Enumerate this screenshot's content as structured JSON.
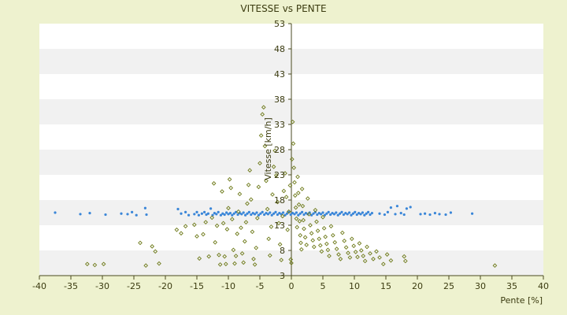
{
  "chart_data": {
    "type": "scatter",
    "title": "VITESSE vs PENTE",
    "xlabel": "Pente [%]",
    "ylabel": "Vitesse [km/h]",
    "xlim": [
      -40,
      40
    ],
    "ylim": [
      3,
      53
    ],
    "xticks": [
      -40,
      -35,
      -30,
      -25,
      -20,
      -15,
      -10,
      -5,
      0,
      5,
      10,
      15,
      20,
      25,
      30,
      35,
      40
    ],
    "yticks": [
      3,
      8,
      13,
      18,
      23,
      28,
      33,
      38,
      43,
      48,
      53
    ],
    "grid": "alternating horizontal bands",
    "legend": "none",
    "series": [
      {
        "color": "#3a86d8",
        "marker": "dot",
        "points": [
          [
            -37.5,
            15.5
          ],
          [
            -33.5,
            15.2
          ],
          [
            -32,
            15.4
          ],
          [
            -29.5,
            15.1
          ],
          [
            -27,
            15.3
          ],
          [
            -26,
            15.2
          ],
          [
            -25.3,
            15.6
          ],
          [
            -24.6,
            15.0
          ],
          [
            -23.2,
            16.4
          ],
          [
            -23,
            15.1
          ],
          [
            -18,
            16.2
          ],
          [
            -17.5,
            15.3
          ],
          [
            -16.8,
            15.6
          ],
          [
            -16.3,
            15.0
          ],
          [
            -15.4,
            15.2
          ],
          [
            -15,
            15.6
          ],
          [
            -14.7,
            15.0
          ],
          [
            -14.2,
            15.3
          ],
          [
            -13.8,
            15.6
          ],
          [
            -13.5,
            15.1
          ],
          [
            -13.2,
            15.3
          ],
          [
            -12.8,
            16.3
          ],
          [
            -12.5,
            15.0
          ],
          [
            -12.2,
            15.4
          ],
          [
            -11.9,
            15.2
          ],
          [
            -11.6,
            15.6
          ],
          [
            -11.2,
            15.0
          ],
          [
            -10.9,
            15.3
          ],
          [
            -10.6,
            15.1
          ],
          [
            -10.3,
            15.5
          ],
          [
            -10.0,
            15.2
          ],
          [
            -9.7,
            15.4
          ],
          [
            -9.4,
            15.0
          ],
          [
            -9.1,
            15.3
          ],
          [
            -8.8,
            15.6
          ],
          [
            -8.5,
            15.1
          ],
          [
            -8.2,
            15.4
          ],
          [
            -7.9,
            15.2
          ],
          [
            -7.6,
            15.5
          ],
          [
            -7.3,
            15.0
          ],
          [
            -7.0,
            15.3
          ],
          [
            -6.7,
            15.6
          ],
          [
            -6.4,
            15.1
          ],
          [
            -6.1,
            15.4
          ],
          [
            -5.8,
            15.2
          ],
          [
            -5.5,
            15.5
          ],
          [
            -5.2,
            15.0
          ],
          [
            -4.9,
            15.3
          ],
          [
            -4.6,
            15.6
          ],
          [
            -4.3,
            15.1
          ],
          [
            -4.0,
            15.4
          ],
          [
            -3.7,
            15.2
          ],
          [
            -3.4,
            15.5
          ],
          [
            -3.1,
            15.0
          ],
          [
            -2.8,
            15.3
          ],
          [
            -2.5,
            15.6
          ],
          [
            -2.2,
            15.1
          ],
          [
            -1.9,
            15.4
          ],
          [
            -1.6,
            15.2
          ],
          [
            -1.3,
            15.5
          ],
          [
            -1.0,
            15.0
          ],
          [
            -0.7,
            15.3
          ],
          [
            -0.4,
            15.6
          ],
          [
            -0.1,
            15.1
          ],
          [
            0.2,
            15.4
          ],
          [
            0.5,
            15.2
          ],
          [
            0.8,
            15.5
          ],
          [
            1.1,
            15.0
          ],
          [
            1.4,
            15.3
          ],
          [
            1.7,
            15.6
          ],
          [
            2.0,
            15.1
          ],
          [
            2.3,
            15.4
          ],
          [
            2.6,
            15.2
          ],
          [
            2.9,
            15.5
          ],
          [
            3.2,
            15.0
          ],
          [
            3.5,
            15.3
          ],
          [
            3.8,
            15.6
          ],
          [
            4.1,
            15.1
          ],
          [
            4.4,
            15.4
          ],
          [
            4.7,
            15.2
          ],
          [
            5.0,
            15.5
          ],
          [
            5.3,
            15.0
          ],
          [
            5.6,
            15.3
          ],
          [
            5.9,
            15.6
          ],
          [
            6.2,
            15.1
          ],
          [
            6.5,
            15.4
          ],
          [
            6.8,
            15.2
          ],
          [
            7.1,
            15.5
          ],
          [
            7.4,
            15.0
          ],
          [
            7.7,
            15.3
          ],
          [
            8.0,
            15.6
          ],
          [
            8.3,
            15.1
          ],
          [
            8.6,
            15.4
          ],
          [
            8.9,
            15.2
          ],
          [
            9.2,
            15.5
          ],
          [
            9.5,
            15.0
          ],
          [
            9.8,
            15.3
          ],
          [
            10.1,
            15.6
          ],
          [
            10.4,
            15.1
          ],
          [
            10.7,
            15.4
          ],
          [
            11.0,
            15.2
          ],
          [
            11.3,
            15.5
          ],
          [
            11.6,
            15.0
          ],
          [
            11.9,
            15.3
          ],
          [
            12.2,
            15.6
          ],
          [
            12.5,
            15.1
          ],
          [
            12.8,
            15.4
          ],
          [
            14.0,
            15.3
          ],
          [
            14.8,
            15.1
          ],
          [
            15.3,
            15.6
          ],
          [
            15.8,
            16.5
          ],
          [
            16.5,
            15.2
          ],
          [
            16.8,
            16.8
          ],
          [
            17.4,
            15.4
          ],
          [
            17.9,
            15.1
          ],
          [
            18.3,
            16.3
          ],
          [
            18.9,
            16.6
          ],
          [
            20.5,
            15.2
          ],
          [
            21.2,
            15.3
          ],
          [
            22.0,
            15.1
          ],
          [
            22.8,
            15.4
          ],
          [
            23.5,
            15.2
          ],
          [
            24.5,
            15.1
          ],
          [
            25.3,
            15.5
          ],
          [
            28.7,
            15.3
          ]
        ]
      },
      {
        "color": "#6e7a1a",
        "marker": "diamond",
        "points": [
          [
            -32.4,
            5.3
          ],
          [
            -31.2,
            5.1
          ],
          [
            -29.8,
            5.3
          ],
          [
            -23.1,
            5.0
          ],
          [
            -24.0,
            9.5
          ],
          [
            -22.1,
            8.8
          ],
          [
            -21.6,
            7.8
          ],
          [
            -21.0,
            5.4
          ],
          [
            -18.2,
            12.1
          ],
          [
            -17.5,
            11.4
          ],
          [
            -16.8,
            12.8
          ],
          [
            -15.4,
            13.1
          ],
          [
            -15.0,
            10.8
          ],
          [
            -14.6,
            6.4
          ],
          [
            -14.0,
            11.2
          ],
          [
            -13.6,
            13.6
          ],
          [
            -13.1,
            6.8
          ],
          [
            -12.6,
            14.5
          ],
          [
            -12.3,
            21.3
          ],
          [
            -12.1,
            9.6
          ],
          [
            -11.8,
            12.9
          ],
          [
            -11.5,
            7.1
          ],
          [
            -11.3,
            5.2
          ],
          [
            -11.0,
            19.7
          ],
          [
            -10.8,
            13.4
          ],
          [
            -10.6,
            6.8
          ],
          [
            -10.4,
            5.3
          ],
          [
            -10.2,
            12.2
          ],
          [
            -10.0,
            16.4
          ],
          [
            -9.8,
            22.1
          ],
          [
            -9.6,
            20.4
          ],
          [
            -9.4,
            14.2
          ],
          [
            -9.2,
            8.1
          ],
          [
            -9.0,
            5.4
          ],
          [
            -8.8,
            6.9
          ],
          [
            -8.6,
            11.3
          ],
          [
            -8.4,
            15.7
          ],
          [
            -8.2,
            19.2
          ],
          [
            -8.0,
            12.5
          ],
          [
            -7.8,
            7.4
          ],
          [
            -7.6,
            5.6
          ],
          [
            -7.4,
            9.8
          ],
          [
            -7.2,
            13.6
          ],
          [
            -7.0,
            17.3
          ],
          [
            -6.8,
            21.0
          ],
          [
            -6.6,
            23.9
          ],
          [
            -6.4,
            18.1
          ],
          [
            -6.2,
            11.7
          ],
          [
            -6.0,
            6.3
          ],
          [
            -5.8,
            5.2
          ],
          [
            -5.6,
            8.5
          ],
          [
            -5.4,
            14.4
          ],
          [
            -5.2,
            20.6
          ],
          [
            -5.0,
            25.3
          ],
          [
            -4.8,
            30.8
          ],
          [
            -4.6,
            35.0
          ],
          [
            -4.4,
            36.4
          ],
          [
            -4.2,
            28.7
          ],
          [
            -4.0,
            21.8
          ],
          [
            -3.8,
            16.2
          ],
          [
            -3.6,
            10.3
          ],
          [
            -3.4,
            7.0
          ],
          [
            -3.2,
            12.7
          ],
          [
            -3.0,
            19.1
          ],
          [
            -2.8,
            24.6
          ],
          [
            -2.6,
            27.8
          ],
          [
            -2.4,
            22.9
          ],
          [
            -2.2,
            17.6
          ],
          [
            -2.0,
            13.4
          ],
          [
            -1.8,
            9.2
          ],
          [
            -1.6,
            6.1
          ],
          [
            -1.4,
            14.8
          ],
          [
            -1.2,
            19.8
          ],
          [
            -1.0,
            23.3
          ],
          [
            -0.8,
            18.6
          ],
          [
            -0.6,
            12.1
          ],
          [
            -0.4,
            15.7
          ],
          [
            -0.2,
            20.9
          ],
          [
            -0.1,
            6.2
          ],
          [
            0.0,
            5.5
          ],
          [
            0.1,
            26.1
          ],
          [
            0.2,
            33.5
          ],
          [
            0.3,
            29.2
          ],
          [
            0.4,
            24.4
          ],
          [
            0.5,
            21.5
          ],
          [
            0.6,
            18.9
          ],
          [
            0.7,
            16.5
          ],
          [
            0.8,
            14.3
          ],
          [
            0.9,
            12.6
          ],
          [
            1.0,
            22.6
          ],
          [
            1.1,
            19.4
          ],
          [
            1.2,
            17.1
          ],
          [
            1.3,
            13.8
          ],
          [
            1.4,
            11.0
          ],
          [
            1.5,
            9.5
          ],
          [
            1.6,
            8.2
          ],
          [
            1.7,
            20.2
          ],
          [
            1.8,
            16.8
          ],
          [
            1.9,
            14.0
          ],
          [
            2.0,
            12.3
          ],
          [
            2.2,
            10.6
          ],
          [
            2.4,
            9.1
          ],
          [
            2.6,
            18.3
          ],
          [
            2.8,
            15.2
          ],
          [
            3.0,
            13.0
          ],
          [
            3.2,
            11.4
          ],
          [
            3.4,
            10.0
          ],
          [
            3.6,
            8.7
          ],
          [
            3.8,
            16.0
          ],
          [
            4.0,
            13.7
          ],
          [
            4.2,
            11.9
          ],
          [
            4.4,
            10.3
          ],
          [
            4.6,
            9.0
          ],
          [
            4.8,
            7.8
          ],
          [
            5.0,
            14.6
          ],
          [
            5.2,
            12.4
          ],
          [
            5.4,
            10.7
          ],
          [
            5.6,
            9.3
          ],
          [
            5.8,
            8.1
          ],
          [
            6.0,
            6.9
          ],
          [
            6.3,
            12.8
          ],
          [
            6.6,
            11.0
          ],
          [
            6.9,
            9.6
          ],
          [
            7.2,
            8.3
          ],
          [
            7.5,
            7.2
          ],
          [
            7.8,
            6.3
          ],
          [
            8.1,
            11.5
          ],
          [
            8.4,
            9.9
          ],
          [
            8.7,
            8.6
          ],
          [
            9.0,
            7.5
          ],
          [
            9.3,
            6.6
          ],
          [
            9.6,
            10.3
          ],
          [
            9.9,
            8.9
          ],
          [
            10.2,
            7.7
          ],
          [
            10.5,
            6.7
          ],
          [
            10.8,
            9.4
          ],
          [
            11.1,
            8.0
          ],
          [
            11.4,
            6.9
          ],
          [
            11.7,
            5.9
          ],
          [
            12.0,
            8.7
          ],
          [
            12.5,
            7.4
          ],
          [
            13.0,
            6.3
          ],
          [
            13.5,
            7.8
          ],
          [
            14.0,
            6.6
          ],
          [
            14.6,
            5.3
          ],
          [
            15.2,
            7.2
          ],
          [
            15.8,
            6.0
          ],
          [
            17.9,
            6.8
          ],
          [
            18.1,
            5.9
          ],
          [
            32.3,
            5.0
          ]
        ]
      }
    ]
  }
}
